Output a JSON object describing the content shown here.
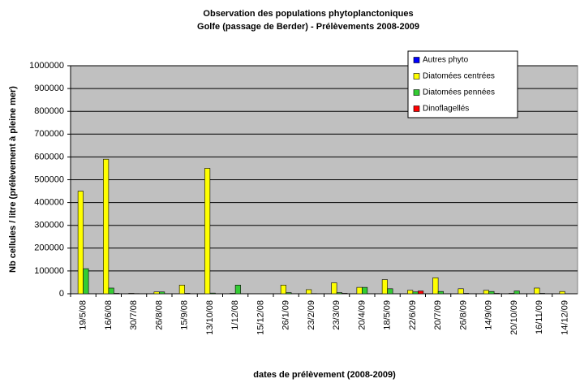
{
  "chart_data": {
    "type": "bar",
    "title": "Observation des populations phytoplanctoniques",
    "subtitle": "Golfe (passage de Berder) - Prélèvements 2008-2009",
    "x_label": "dates de prélèvement (2008-2009)",
    "y_label": "Nb cellules / litre (prélèvement à pleine mer)",
    "categories": [
      "19/5/08",
      "16/6/08",
      "30/7/08",
      "26/8/08",
      "15/9/08",
      "13/10/08",
      "1/12/08",
      "15/12/08",
      "26/1/09",
      "23/2/09",
      "23/3/09",
      "20/4/09",
      "18/5/09",
      "22/6/09",
      "20/7/09",
      "26/8/09",
      "14/9/09",
      "20/10/09",
      "16/11/09",
      "14/12/09"
    ],
    "series": [
      {
        "name": "Autres phyto",
        "color": "#0000ff",
        "values": [
          0,
          0,
          0,
          0,
          0,
          0,
          0,
          0,
          0,
          0,
          0,
          0,
          0,
          0,
          0,
          0,
          0,
          0,
          0,
          0
        ]
      },
      {
        "name": "Diatomées centrées",
        "color": "#ffff00",
        "values": [
          450000,
          590000,
          2000,
          8000,
          38000,
          550000,
          2000,
          0,
          38000,
          18000,
          48000,
          28000,
          62000,
          15000,
          70000,
          22000,
          15000,
          2000,
          25000,
          10000
        ]
      },
      {
        "name": "Diatomées pennées",
        "color": "#33cc33",
        "values": [
          110000,
          25000,
          1000,
          8000,
          2000,
          3000,
          38000,
          0,
          5000,
          1000,
          5000,
          28000,
          22000,
          8000,
          10000,
          2000,
          10000,
          12000,
          2000,
          0
        ]
      },
      {
        "name": "Dinoflagellés",
        "color": "#ff0000",
        "values": [
          0,
          2000,
          0,
          0,
          0,
          0,
          0,
          0,
          0,
          0,
          2000,
          0,
          0,
          12000,
          0,
          0,
          2000,
          0,
          0,
          0
        ]
      }
    ],
    "ylim": [
      0,
      1000000
    ],
    "yticks": [
      0,
      100000,
      200000,
      300000,
      400000,
      500000,
      600000,
      700000,
      800000,
      900000,
      1000000
    ],
    "grid": true,
    "legend": "upper right"
  }
}
